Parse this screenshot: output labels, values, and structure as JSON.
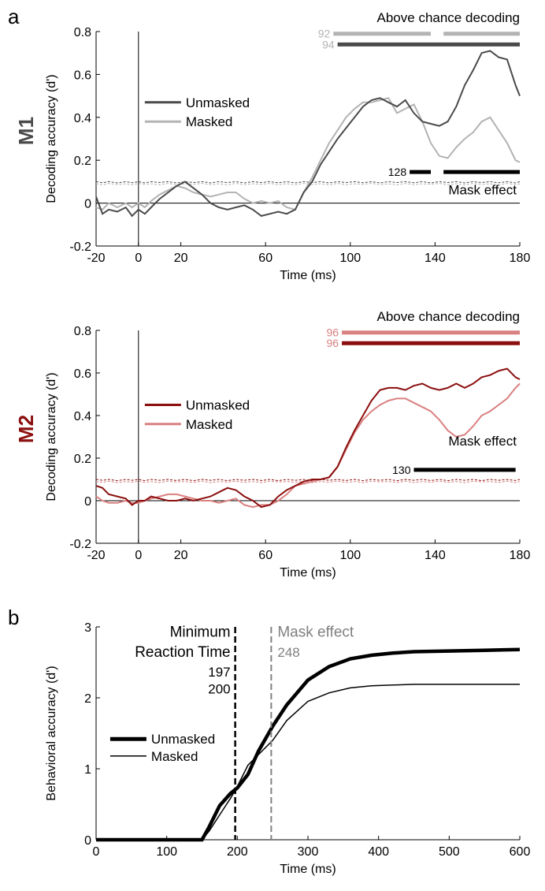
{
  "panel_labels": {
    "a": "a",
    "b": "b"
  },
  "colors": {
    "m1_unmasked": "#4a4a4a",
    "m1_masked": "#b3b3b3",
    "m1_label": "#4a4a4a",
    "m2_unmasked": "#8b0f0f",
    "m2_masked": "#d98080",
    "m2_label": "#8b0f0f",
    "black": "#000000",
    "gray_dash": "#808080"
  },
  "chart_data": [
    {
      "id": "m1",
      "type": "line",
      "row_label": "M1",
      "title": "",
      "xlabel": "Time (ms)",
      "ylabel": "Decoding accuracy (d')",
      "xlim": [
        -20,
        180
      ],
      "ylim": [
        -0.2,
        0.8
      ],
      "xticks": [
        -20,
        0,
        20,
        60,
        100,
        140,
        180
      ],
      "yticks": [
        -0.2,
        0,
        0.2,
        0.4,
        0.6,
        0.8
      ],
      "ytick_labels": [
        "-0.2",
        "0",
        "0.2",
        "0.4",
        "0.6",
        "0.8"
      ],
      "x": [
        -20,
        -17,
        -14,
        -10,
        -6,
        -3,
        0,
        3,
        6,
        10,
        14,
        18,
        22,
        26,
        30,
        34,
        38,
        42,
        46,
        50,
        54,
        58,
        62,
        66,
        70,
        74,
        78,
        82,
        86,
        90,
        94,
        98,
        102,
        106,
        110,
        114,
        118,
        122,
        126,
        130,
        134,
        138,
        142,
        146,
        150,
        154,
        158,
        162,
        166,
        170,
        174,
        178,
        180
      ],
      "series": [
        {
          "name": "Unmasked",
          "values": [
            0.03,
            -0.05,
            -0.03,
            -0.04,
            -0.02,
            -0.06,
            -0.03,
            -0.05,
            -0.02,
            0.02,
            0.05,
            0.08,
            0.1,
            0.07,
            0.04,
            0.0,
            -0.02,
            -0.03,
            -0.02,
            -0.01,
            -0.03,
            -0.06,
            -0.05,
            -0.04,
            -0.05,
            -0.03,
            0.05,
            0.1,
            0.18,
            0.24,
            0.3,
            0.35,
            0.4,
            0.45,
            0.48,
            0.49,
            0.47,
            0.45,
            0.48,
            0.42,
            0.38,
            0.37,
            0.36,
            0.38,
            0.45,
            0.55,
            0.62,
            0.7,
            0.71,
            0.68,
            0.67,
            0.55,
            0.5
          ]
        },
        {
          "name": "Masked",
          "values": [
            -0.02,
            -0.03,
            0.0,
            -0.02,
            0.0,
            -0.02,
            0.0,
            -0.02,
            0.01,
            0.04,
            0.06,
            0.08,
            0.07,
            0.05,
            0.04,
            0.03,
            0.04,
            0.05,
            0.05,
            0.02,
            0.0,
            0.01,
            0.0,
            0.01,
            -0.02,
            -0.03,
            0.05,
            0.12,
            0.2,
            0.28,
            0.34,
            0.4,
            0.44,
            0.47,
            0.47,
            0.48,
            0.49,
            0.42,
            0.44,
            0.46,
            0.38,
            0.28,
            0.22,
            0.21,
            0.26,
            0.3,
            0.33,
            0.38,
            0.4,
            0.34,
            0.28,
            0.2,
            0.19
          ]
        },
        {
          "name": "chance-unmasked",
          "values": [
            0.1,
            0.095,
            0.1,
            0.094,
            0.1,
            0.095,
            0.1,
            0.094,
            0.1,
            0.096,
            0.1,
            0.094,
            0.1,
            0.096,
            0.1,
            0.094,
            0.1,
            0.096,
            0.1,
            0.094,
            0.1,
            0.096,
            0.1,
            0.095,
            0.1,
            0.094,
            0.1,
            0.096,
            0.1,
            0.094,
            0.1,
            0.096,
            0.1,
            0.095,
            0.1,
            0.094,
            0.1,
            0.096,
            0.1,
            0.095,
            0.1,
            0.094,
            0.1,
            0.096,
            0.1,
            0.094,
            0.1,
            0.096,
            0.1,
            0.095,
            0.1,
            0.094,
            0.1
          ]
        },
        {
          "name": "chance-masked",
          "values": [
            0.09,
            0.085,
            0.092,
            0.086,
            0.09,
            0.085,
            0.092,
            0.087,
            0.09,
            0.085,
            0.092,
            0.086,
            0.09,
            0.088,
            0.092,
            0.086,
            0.09,
            0.085,
            0.092,
            0.086,
            0.09,
            0.088,
            0.092,
            0.086,
            0.09,
            0.085,
            0.092,
            0.087,
            0.09,
            0.085,
            0.092,
            0.086,
            0.09,
            0.088,
            0.092,
            0.086,
            0.09,
            0.085,
            0.092,
            0.086,
            0.09,
            0.088,
            0.092,
            0.086,
            0.09,
            0.085,
            0.092,
            0.087,
            0.09,
            0.085,
            0.092,
            0.086,
            0.09
          ]
        }
      ],
      "legend": [
        {
          "name": "Unmasked",
          "x_data": 3,
          "y_data": 0.47
        },
        {
          "name": "Masked",
          "x_data": 3,
          "y_data": 0.38
        }
      ],
      "above_chance_title": "Above chance decoding",
      "above_chance_bars": [
        {
          "series": "Masked",
          "label": "92",
          "segments": [
            [
              92,
              138
            ],
            [
              144,
              180
            ]
          ],
          "y_data": 0.79
        },
        {
          "series": "Unmasked",
          "label": "94",
          "segments": [
            [
              94,
              180
            ]
          ],
          "y_data": 0.74
        }
      ],
      "mask_effect_title": "Mask effect",
      "mask_effect_bar": {
        "label": "128",
        "segments": [
          [
            128,
            138
          ],
          [
            144,
            180
          ]
        ],
        "y_data": 0.145
      },
      "onset_line_x": 0
    },
    {
      "id": "m2",
      "type": "line",
      "row_label": "M2",
      "title": "",
      "xlabel": "Time (ms)",
      "ylabel": "Decoding accuracy (d')",
      "xlim": [
        -20,
        180
      ],
      "ylim": [
        -0.2,
        0.8
      ],
      "xticks": [
        -20,
        0,
        20,
        60,
        100,
        140,
        180
      ],
      "yticks": [
        -0.2,
        0,
        0.2,
        0.4,
        0.6,
        0.8
      ],
      "ytick_labels": [
        "-0.2",
        "0",
        "0.2",
        "0.4",
        "0.6",
        "0.8"
      ],
      "x": [
        -20,
        -17,
        -14,
        -10,
        -6,
        -3,
        0,
        3,
        6,
        10,
        14,
        18,
        22,
        26,
        30,
        34,
        38,
        42,
        46,
        50,
        54,
        58,
        62,
        66,
        70,
        74,
        78,
        82,
        86,
        90,
        94,
        98,
        102,
        106,
        110,
        114,
        118,
        122,
        126,
        130,
        134,
        138,
        142,
        146,
        150,
        154,
        158,
        162,
        166,
        170,
        174,
        178,
        180
      ],
      "series": [
        {
          "name": "Unmasked",
          "values": [
            0.07,
            0.06,
            0.03,
            0.02,
            0.01,
            -0.02,
            0.0,
            0.0,
            0.02,
            0.01,
            0.0,
            0.0,
            0.01,
            0.0,
            0.01,
            0.02,
            0.04,
            0.06,
            0.05,
            0.02,
            0.0,
            -0.03,
            -0.02,
            0.02,
            0.05,
            0.07,
            0.09,
            0.1,
            0.1,
            0.11,
            0.16,
            0.25,
            0.33,
            0.4,
            0.47,
            0.52,
            0.53,
            0.53,
            0.52,
            0.54,
            0.55,
            0.53,
            0.52,
            0.53,
            0.55,
            0.53,
            0.55,
            0.58,
            0.59,
            0.61,
            0.62,
            0.58,
            0.57
          ]
        },
        {
          "name": "Masked",
          "values": [
            0.02,
            0.0,
            -0.01,
            -0.01,
            0.0,
            -0.01,
            -0.01,
            0.0,
            0.01,
            0.02,
            0.03,
            0.03,
            0.02,
            0.01,
            0.0,
            0.0,
            -0.01,
            0.0,
            0.01,
            -0.02,
            -0.03,
            -0.02,
            -0.02,
            0.0,
            0.03,
            0.07,
            0.08,
            0.09,
            0.1,
            0.11,
            0.16,
            0.24,
            0.32,
            0.38,
            0.42,
            0.45,
            0.47,
            0.48,
            0.48,
            0.46,
            0.44,
            0.42,
            0.38,
            0.33,
            0.3,
            0.31,
            0.35,
            0.4,
            0.42,
            0.45,
            0.48,
            0.53,
            0.55
          ]
        },
        {
          "name": "chance-unmasked",
          "values": [
            0.1,
            0.096,
            0.1,
            0.094,
            0.1,
            0.096,
            0.1,
            0.094,
            0.1,
            0.096,
            0.1,
            0.095,
            0.1,
            0.094,
            0.1,
            0.096,
            0.1,
            0.094,
            0.1,
            0.096,
            0.1,
            0.095,
            0.1,
            0.094,
            0.1,
            0.096,
            0.1,
            0.094,
            0.1,
            0.096,
            0.1,
            0.095,
            0.1,
            0.094,
            0.1,
            0.096,
            0.1,
            0.094,
            0.1,
            0.096,
            0.1,
            0.095,
            0.1,
            0.094,
            0.1,
            0.096,
            0.1,
            0.094,
            0.1,
            0.096,
            0.1,
            0.095,
            0.1
          ]
        },
        {
          "name": "chance-masked",
          "values": [
            0.09,
            0.086,
            0.092,
            0.085,
            0.09,
            0.087,
            0.092,
            0.086,
            0.09,
            0.085,
            0.092,
            0.088,
            0.09,
            0.086,
            0.092,
            0.085,
            0.09,
            0.087,
            0.092,
            0.086,
            0.09,
            0.085,
            0.092,
            0.088,
            0.09,
            0.086,
            0.092,
            0.085,
            0.09,
            0.087,
            0.092,
            0.086,
            0.09,
            0.085,
            0.092,
            0.088,
            0.09,
            0.086,
            0.092,
            0.085,
            0.09,
            0.087,
            0.092,
            0.086,
            0.09,
            0.085,
            0.092,
            0.088,
            0.09,
            0.086,
            0.092,
            0.085,
            0.09
          ]
        }
      ],
      "legend": [
        {
          "name": "Unmasked",
          "x_data": 3,
          "y_data": 0.45
        },
        {
          "name": "Masked",
          "x_data": 3,
          "y_data": 0.36
        }
      ],
      "above_chance_title": "Above chance decoding",
      "above_chance_bars": [
        {
          "series": "Masked",
          "label": "96",
          "segments": [
            [
              96,
              180
            ]
          ],
          "y_data": 0.79
        },
        {
          "series": "Unmasked",
          "label": "96",
          "segments": [
            [
              96,
              180
            ]
          ],
          "y_data": 0.74
        }
      ],
      "mask_effect_title": "Mask effect",
      "mask_effect_bar": {
        "label": "130",
        "segments": [
          [
            130,
            178
          ]
        ],
        "y_data": 0.145
      },
      "onset_line_x": 0
    },
    {
      "id": "behav",
      "type": "line",
      "title": "",
      "xlabel": "Time (ms)",
      "ylabel": "Behavioral accuracy (d')",
      "xlim": [
        0,
        600
      ],
      "ylim": [
        0,
        3
      ],
      "xticks": [
        0,
        100,
        200,
        300,
        400,
        500,
        600
      ],
      "yticks": [
        0,
        1,
        2,
        3
      ],
      "ytick_labels": [
        "0",
        "1",
        "2",
        "3"
      ],
      "x": [
        0,
        150,
        160,
        175,
        190,
        200,
        215,
        230,
        250,
        270,
        300,
        330,
        360,
        390,
        420,
        450,
        500,
        550,
        600
      ],
      "series": [
        {
          "name": "Unmasked",
          "values": [
            0,
            0,
            0.18,
            0.48,
            0.65,
            0.73,
            0.92,
            1.25,
            1.6,
            1.9,
            2.25,
            2.44,
            2.55,
            2.6,
            2.63,
            2.65,
            2.66,
            2.67,
            2.68
          ]
        },
        {
          "name": "Masked",
          "values": [
            0,
            0,
            0.12,
            0.35,
            0.58,
            0.75,
            1.05,
            1.2,
            1.4,
            1.68,
            1.95,
            2.07,
            2.14,
            2.17,
            2.18,
            2.19,
            2.19,
            2.19,
            2.19
          ]
        }
      ],
      "legend": [
        {
          "name": "Unmasked",
          "x_data": 20,
          "y_data": 1.42
        },
        {
          "name": "Masked",
          "x_data": 20,
          "y_data": 1.18
        }
      ],
      "min_rt": {
        "title_line1": "Minimum",
        "title_line2": "Reaction Time",
        "value_unmasked": "197",
        "value_masked": "200",
        "x": 197
      },
      "mask_effect": {
        "title": "Mask effect",
        "value": "248",
        "x": 248
      }
    }
  ]
}
